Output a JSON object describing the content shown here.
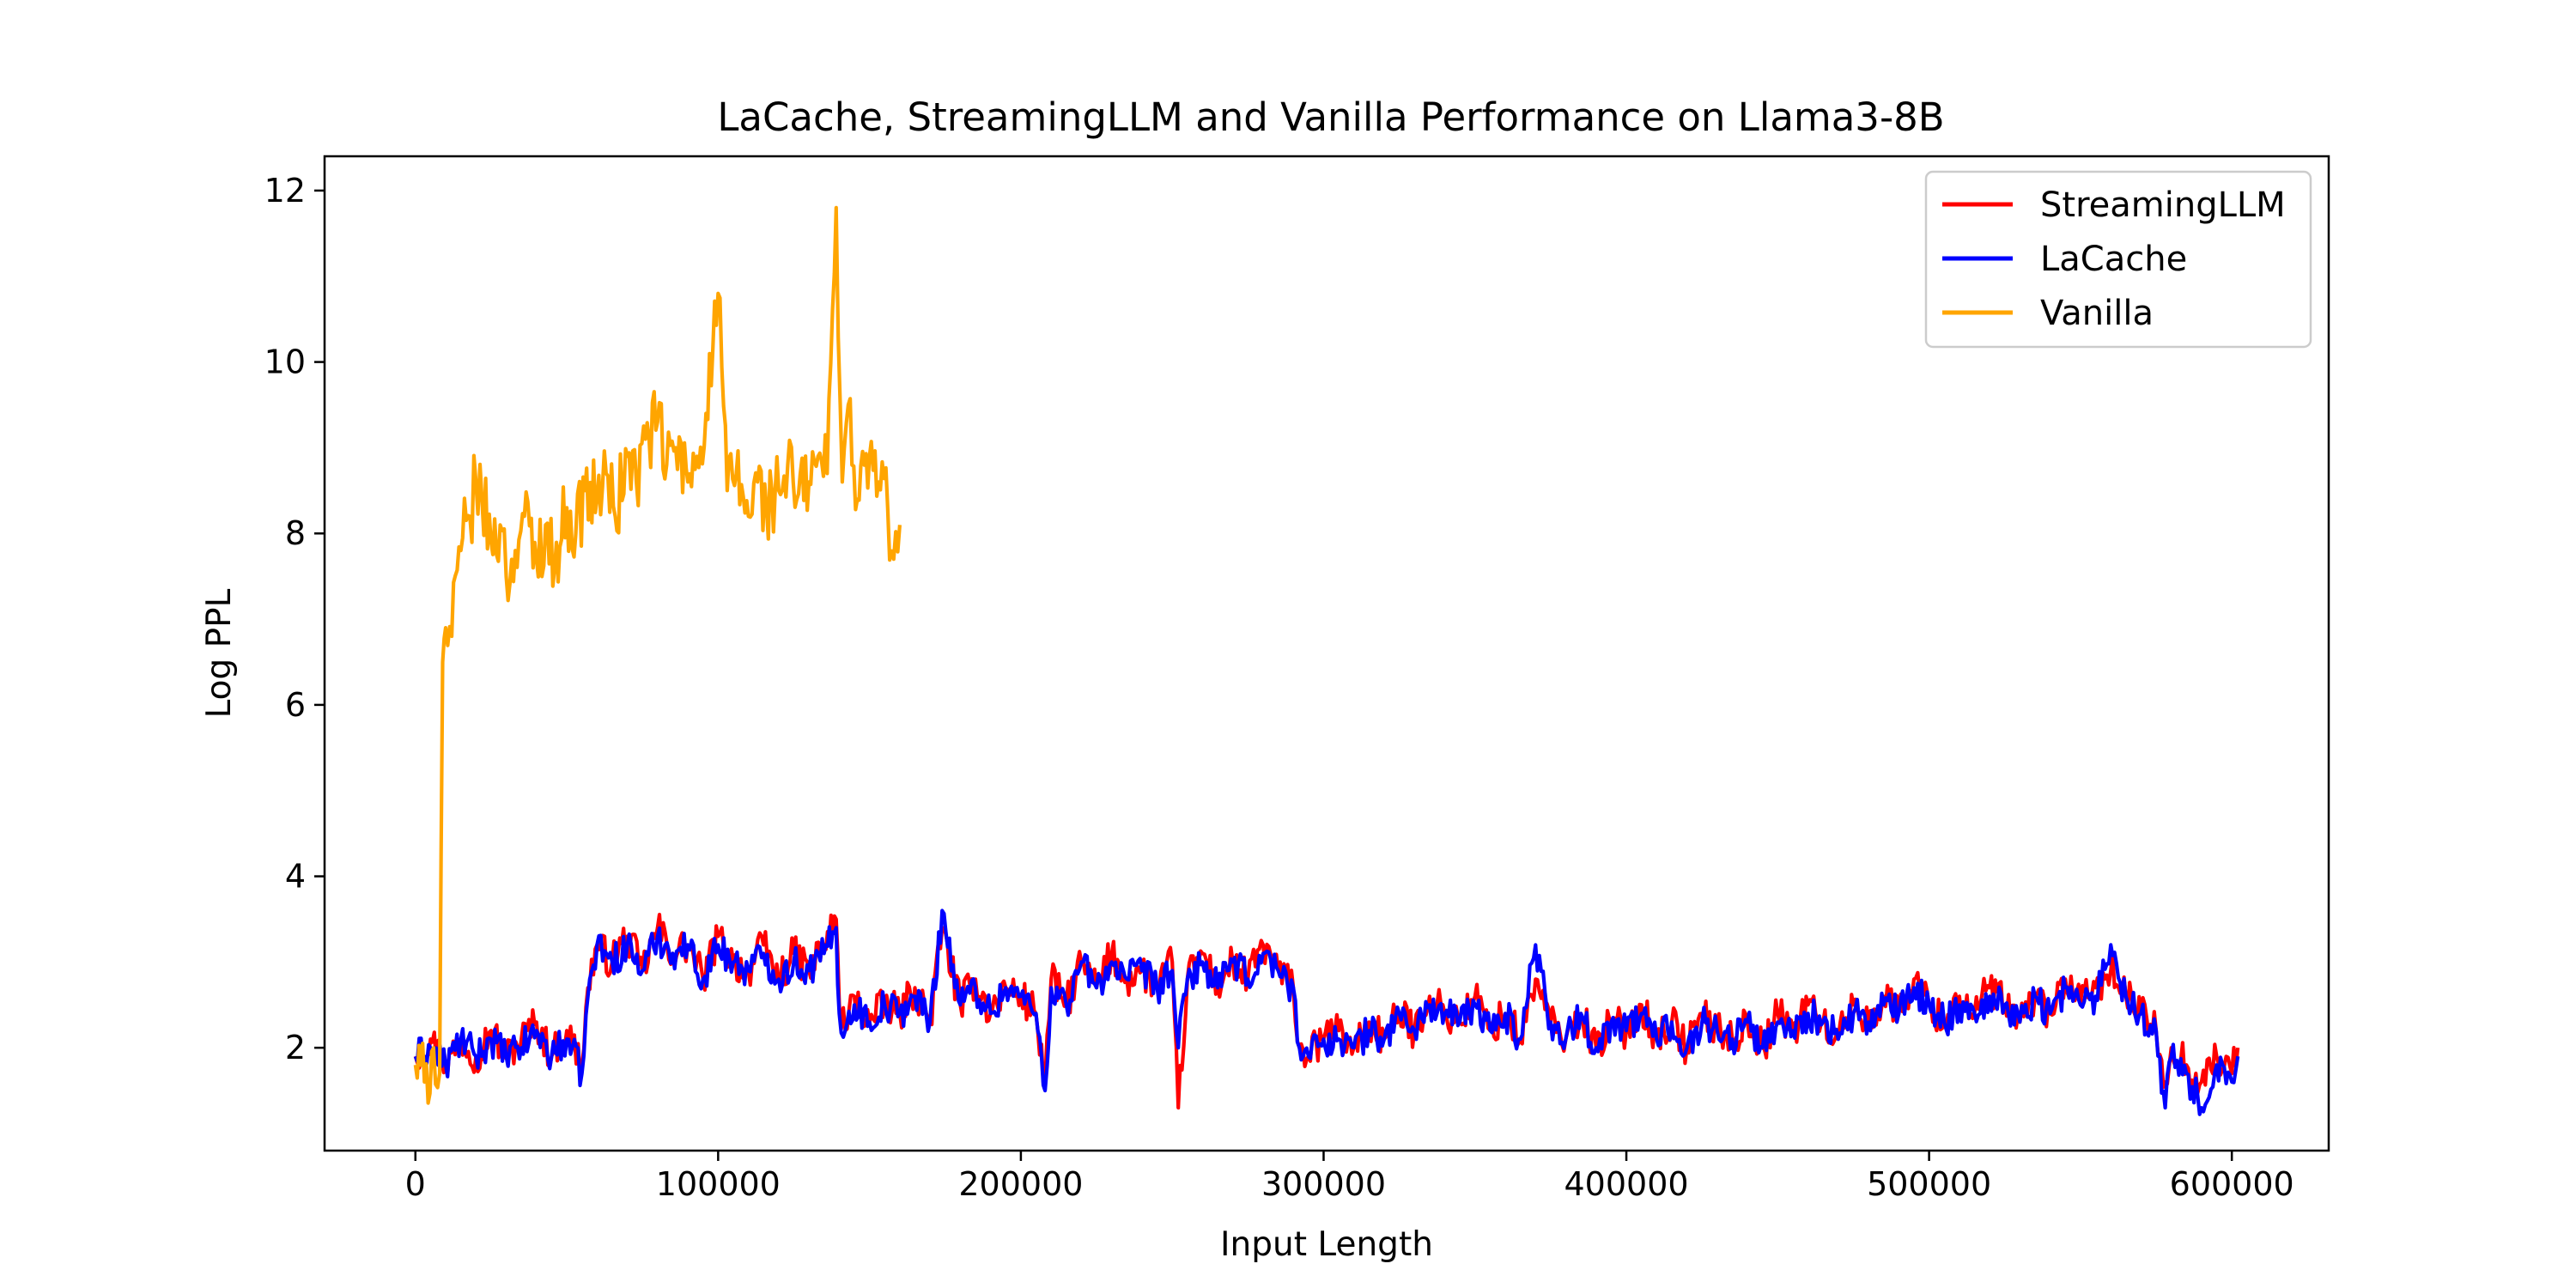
{
  "chart_data": {
    "type": "line",
    "title": "LaCache, StreamingLLM and Vanilla Performance on Llama3-8B",
    "xlabel": "Input Length",
    "ylabel": "Log PPL",
    "xlim": [
      -30000,
      632000
    ],
    "ylim": [
      0.8,
      12.4
    ],
    "xticks": [
      0,
      100000,
      200000,
      300000,
      400000,
      500000,
      600000
    ],
    "yticks": [
      2,
      4,
      6,
      8,
      10,
      12
    ],
    "grid": false,
    "legend_position": "top-right",
    "series": [
      {
        "name": "StreamingLLM",
        "color": "#ff0000",
        "x": [
          0,
          5000,
          10000,
          15000,
          20000,
          25000,
          30000,
          35000,
          40000,
          45000,
          50000,
          55000,
          57000,
          60000,
          65000,
          70000,
          75000,
          80000,
          85000,
          90000,
          95000,
          100000,
          105000,
          110000,
          115000,
          120000,
          125000,
          130000,
          135000,
          139000,
          140000,
          142000,
          145000,
          150000,
          155000,
          160000,
          165000,
          170000,
          174000,
          180000,
          185000,
          190000,
          195000,
          200000,
          205000,
          208000,
          210000,
          215000,
          220000,
          225000,
          230000,
          235000,
          240000,
          245000,
          250000,
          252000,
          255000,
          260000,
          265000,
          270000,
          275000,
          280000,
          285000,
          290000,
          292000,
          295000,
          300000,
          305000,
          310000,
          315000,
          320000,
          325000,
          330000,
          335000,
          340000,
          345000,
          350000,
          355000,
          360000,
          365000,
          370000,
          375000,
          380000,
          385000,
          390000,
          395000,
          400000,
          405000,
          410000,
          415000,
          420000,
          425000,
          430000,
          435000,
          440000,
          445000,
          450000,
          455000,
          460000,
          465000,
          470000,
          475000,
          480000,
          485000,
          490000,
          495000,
          500000,
          505000,
          510000,
          515000,
          520000,
          525000,
          530000,
          535000,
          540000,
          545000,
          550000,
          555000,
          560000,
          565000,
          570000,
          575000,
          578000,
          580000,
          585000,
          590000,
          595000,
          600000,
          602000
        ],
        "y": [
          1.9,
          2.1,
          1.8,
          2.1,
          1.9,
          2.2,
          1.9,
          2.1,
          2.3,
          1.9,
          2.2,
          1.8,
          2.7,
          3.2,
          3.0,
          3.3,
          2.9,
          3.4,
          3.1,
          3.2,
          2.8,
          3.3,
          3.0,
          2.9,
          3.2,
          2.8,
          3.1,
          2.9,
          3.2,
          3.5,
          2.5,
          2.2,
          2.6,
          2.3,
          2.5,
          2.4,
          2.7,
          2.3,
          3.4,
          2.5,
          2.8,
          2.4,
          2.7,
          2.6,
          2.4,
          1.6,
          2.8,
          2.5,
          3.0,
          2.7,
          3.1,
          2.8,
          2.9,
          2.7,
          3.0,
          1.3,
          2.8,
          3.1,
          2.7,
          3.0,
          2.8,
          3.2,
          2.9,
          2.7,
          2.0,
          1.9,
          2.1,
          2.2,
          2.0,
          2.3,
          2.1,
          2.4,
          2.2,
          2.6,
          2.4,
          2.3,
          2.6,
          2.2,
          2.4,
          2.1,
          2.8,
          2.3,
          2.1,
          2.4,
          2.0,
          2.3,
          2.2,
          2.5,
          2.1,
          2.3,
          2.0,
          2.4,
          2.2,
          2.1,
          2.3,
          2.0,
          2.4,
          2.2,
          2.5,
          2.3,
          2.1,
          2.5,
          2.3,
          2.6,
          2.4,
          2.8,
          2.5,
          2.3,
          2.6,
          2.4,
          2.7,
          2.5,
          2.3,
          2.6,
          2.4,
          2.8,
          2.5,
          2.7,
          2.9,
          2.6,
          2.4,
          2.2,
          1.6,
          2.0,
          1.8,
          1.6,
          1.9,
          1.7,
          2.0
        ],
        "jitter": 0.22
      },
      {
        "name": "LaCache",
        "color": "#0000ff",
        "x": [
          0,
          5000,
          10000,
          15000,
          20000,
          25000,
          30000,
          35000,
          40000,
          45000,
          50000,
          55000,
          57000,
          60000,
          65000,
          70000,
          75000,
          80000,
          85000,
          90000,
          95000,
          100000,
          105000,
          110000,
          115000,
          120000,
          125000,
          130000,
          135000,
          139000,
          140000,
          142000,
          145000,
          150000,
          155000,
          160000,
          165000,
          170000,
          174000,
          180000,
          185000,
          190000,
          195000,
          200000,
          205000,
          208000,
          210000,
          215000,
          220000,
          225000,
          230000,
          235000,
          240000,
          245000,
          250000,
          252000,
          255000,
          260000,
          265000,
          270000,
          275000,
          280000,
          285000,
          290000,
          292000,
          295000,
          300000,
          305000,
          310000,
          315000,
          320000,
          325000,
          330000,
          335000,
          340000,
          345000,
          350000,
          355000,
          360000,
          365000,
          370000,
          375000,
          380000,
          385000,
          390000,
          395000,
          400000,
          405000,
          410000,
          415000,
          420000,
          425000,
          430000,
          435000,
          440000,
          445000,
          450000,
          455000,
          460000,
          465000,
          470000,
          475000,
          480000,
          485000,
          490000,
          495000,
          500000,
          505000,
          510000,
          515000,
          520000,
          525000,
          530000,
          535000,
          540000,
          545000,
          550000,
          555000,
          560000,
          565000,
          570000,
          575000,
          578000,
          580000,
          585000,
          590000,
          595000,
          600000,
          602000
        ],
        "y": [
          1.9,
          2.0,
          1.8,
          2.1,
          1.9,
          2.1,
          1.9,
          2.0,
          2.2,
          1.9,
          2.1,
          1.7,
          2.6,
          3.2,
          3.0,
          3.2,
          2.9,
          3.3,
          3.1,
          3.2,
          2.8,
          3.2,
          3.0,
          2.9,
          3.1,
          2.8,
          3.0,
          2.9,
          3.1,
          3.4,
          2.4,
          2.2,
          2.5,
          2.3,
          2.5,
          2.4,
          2.6,
          2.3,
          3.6,
          2.5,
          2.7,
          2.4,
          2.7,
          2.6,
          2.4,
          1.5,
          2.7,
          2.5,
          3.0,
          2.7,
          3.0,
          2.8,
          2.9,
          2.7,
          2.9,
          2.0,
          2.8,
          3.0,
          2.7,
          3.0,
          2.8,
          3.1,
          2.9,
          2.7,
          2.0,
          1.9,
          2.1,
          2.1,
          2.0,
          2.2,
          2.1,
          2.4,
          2.2,
          2.5,
          2.4,
          2.3,
          2.5,
          2.2,
          2.4,
          2.1,
          3.2,
          2.3,
          2.1,
          2.4,
          2.0,
          2.3,
          2.2,
          2.4,
          2.1,
          2.3,
          2.0,
          2.3,
          2.2,
          2.1,
          2.3,
          2.0,
          2.3,
          2.2,
          2.4,
          2.3,
          2.1,
          2.4,
          2.3,
          2.5,
          2.4,
          2.7,
          2.5,
          2.3,
          2.5,
          2.4,
          2.6,
          2.5,
          2.3,
          2.6,
          2.4,
          2.7,
          2.5,
          2.6,
          3.2,
          2.6,
          2.4,
          2.2,
          1.3,
          1.9,
          1.7,
          1.3,
          1.8,
          1.6,
          1.9
        ],
        "jitter": 0.2
      },
      {
        "name": "Vanilla",
        "color": "#ffa500",
        "x": [
          0,
          3000,
          6000,
          8000,
          9000,
          10000,
          12000,
          15000,
          18000,
          20000,
          22000,
          25000,
          28000,
          30000,
          33000,
          36000,
          40000,
          43000,
          46000,
          50000,
          53000,
          56000,
          60000,
          63000,
          66000,
          70000,
          73000,
          76000,
          80000,
          83000,
          86000,
          90000,
          93000,
          96000,
          100000,
          103000,
          106000,
          110000,
          113000,
          116000,
          120000,
          123000,
          126000,
          130000,
          133000,
          136000,
          139000,
          141000,
          143000,
          146000,
          150000,
          153000,
          156000,
          158000,
          160000
        ],
        "y": [
          1.8,
          1.6,
          2.0,
          1.7,
          6.5,
          6.9,
          6.8,
          7.8,
          8.2,
          8.6,
          8.4,
          7.9,
          8.1,
          7.5,
          7.8,
          8.2,
          7.7,
          8.1,
          7.6,
          8.3,
          8.0,
          8.5,
          8.4,
          8.7,
          8.2,
          8.9,
          8.6,
          9.1,
          9.3,
          8.8,
          9.0,
          8.6,
          8.9,
          9.4,
          10.8,
          8.5,
          8.7,
          8.2,
          8.6,
          8.3,
          8.5,
          8.8,
          8.4,
          8.6,
          8.9,
          8.7,
          11.8,
          8.6,
          9.5,
          8.4,
          8.9,
          8.6,
          8.3,
          7.7,
          8.1
        ],
        "jitter": 0.45
      }
    ]
  }
}
